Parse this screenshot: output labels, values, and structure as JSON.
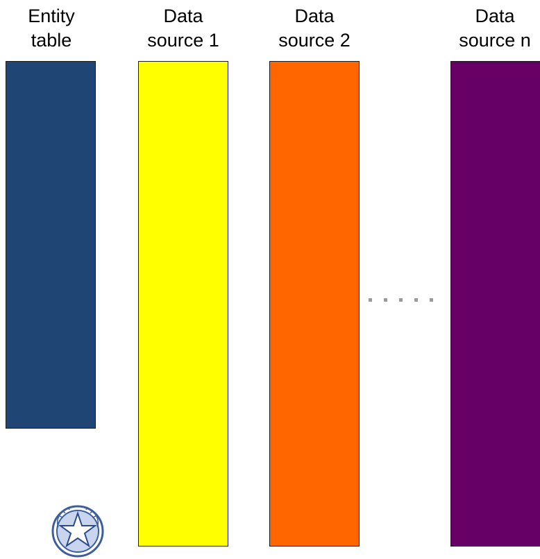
{
  "columns": [
    {
      "line1": "Entity",
      "line2": "table",
      "color": "#1f4574"
    },
    {
      "line1": "Data",
      "line2": "source 1",
      "color": "#ffff00"
    },
    {
      "line1": "Data",
      "line2": "source 2",
      "color": "#ff6600"
    },
    {
      "line1": "Data",
      "line2": "source n",
      "color": "#660066"
    }
  ],
  "ellipsis_icon": "dotted-ellipsis-icon",
  "emblem_icon": "star-emblem-icon"
}
